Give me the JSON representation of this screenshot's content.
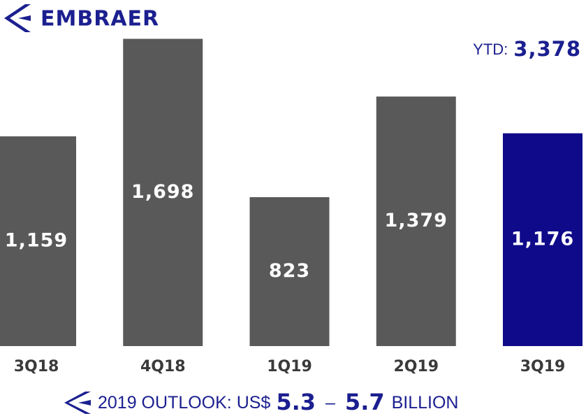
{
  "chart_data": {
    "type": "bar",
    "logo": "EMBRAER",
    "categories": [
      "3Q18",
      "4Q18",
      "1Q19",
      "2Q19",
      "3Q19"
    ],
    "values": [
      1159,
      1698,
      823,
      1379,
      1176
    ],
    "value_labels": [
      "1,159",
      "1,698",
      "823",
      "1,379",
      "1,176"
    ],
    "colors": [
      "#595959",
      "#595959",
      "#595959",
      "#595959",
      "#0f0a8a"
    ],
    "ylim": [
      0,
      1700
    ],
    "ytd": {
      "label": "YTD:",
      "value": 3378,
      "value_label": "3,378"
    },
    "outlook": {
      "prefix": "2019 OUTLOOK: US$",
      "low": 5.3,
      "separator": "–",
      "high": 5.7,
      "suffix": "BILLION"
    }
  }
}
